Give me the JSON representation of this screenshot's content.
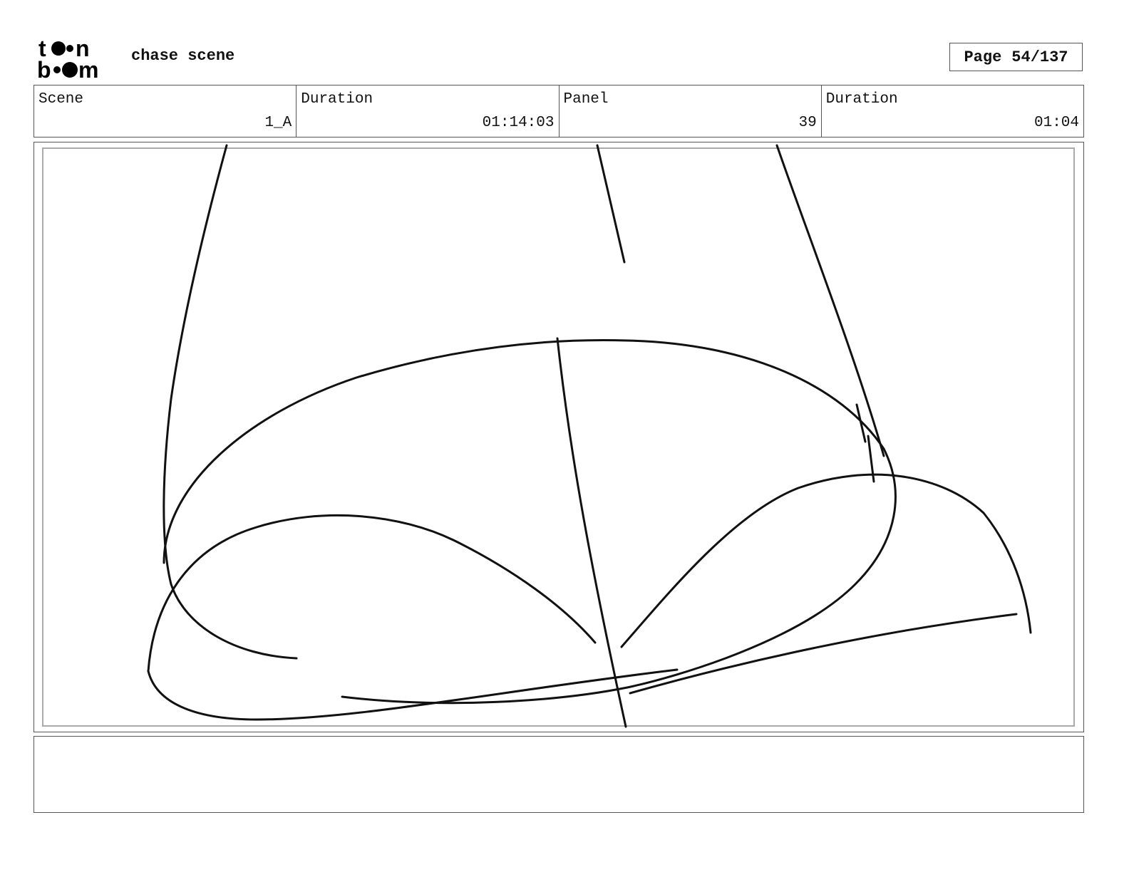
{
  "header": {
    "logo_text": "toon boom",
    "title": "chase scene",
    "page_label": "Page",
    "page_value": "54/137"
  },
  "info": [
    {
      "label": "Scene",
      "value": "1_A"
    },
    {
      "label": "Duration",
      "value": "01:14:03"
    },
    {
      "label": "Panel",
      "value": "39"
    },
    {
      "label": "Duration",
      "value": "01:04"
    }
  ],
  "caption": {
    "text": ""
  }
}
